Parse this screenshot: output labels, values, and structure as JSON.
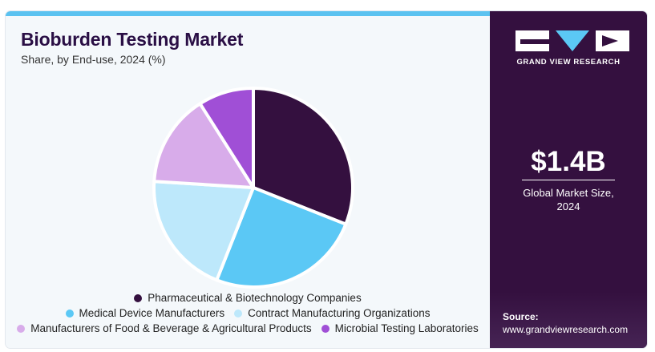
{
  "chart_data": {
    "type": "pie",
    "title": "Bioburden Testing Market",
    "subtitle": "Share, by End-use, 2024 (%)",
    "categories": [
      "Pharmaceutical & Biotechnology Companies",
      "Medical Device Manufacturers",
      "Contract Manufacturing Organizations",
      "Manufacturers of Food & Beverage & Agricultural Products",
      "Microbial Testing Laboratories"
    ],
    "values": [
      31,
      25,
      20,
      15,
      9
    ],
    "colors": [
      "#34103f",
      "#5bc8f5",
      "#bde8fb",
      "#d8acea",
      "#a04fd6"
    ],
    "legend_placement": "bottom",
    "grid": false
  },
  "sidebar": {
    "brand": "GRAND VIEW RESEARCH",
    "logo_icon": "gvr-logo-icon",
    "market_size": "$1.4B",
    "market_size_label_line1": "Global Market Size,",
    "market_size_label_line2": "2024",
    "source_title": "Source:",
    "source_url": "www.grandviewresearch.com"
  }
}
